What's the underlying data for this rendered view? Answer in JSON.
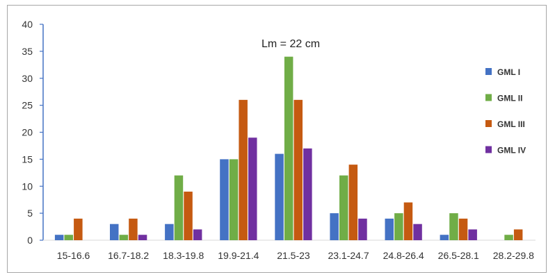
{
  "chart_data": {
    "type": "bar",
    "annotation": "Lm = 22 cm",
    "categories": [
      "15-16.6",
      "16.7-18.2",
      "18.3-19.8",
      "19.9-21.4",
      "21.5-23",
      "23.1-24.7",
      "24.8-26.4",
      "26.5-28.1",
      "28.2-29.8"
    ],
    "series": [
      {
        "name": "GML I",
        "color": "#4472c4",
        "values": [
          1,
          3,
          3,
          15,
          16,
          5,
          4,
          1,
          0
        ]
      },
      {
        "name": "GML II",
        "color": "#70ad47",
        "values": [
          1,
          1,
          12,
          15,
          34,
          12,
          5,
          5,
          1
        ]
      },
      {
        "name": "GML III",
        "color": "#c55a11",
        "values": [
          4,
          4,
          9,
          26,
          26,
          14,
          7,
          4,
          2
        ]
      },
      {
        "name": "GML IV",
        "color": "#7030a0",
        "values": [
          0,
          1,
          2,
          19,
          17,
          4,
          3,
          2,
          0
        ]
      }
    ],
    "ylim": [
      0,
      40
    ],
    "yticks": [
      0,
      5,
      10,
      15,
      20,
      25,
      30,
      35,
      40
    ],
    "grid": false,
    "legend_position": "right"
  }
}
